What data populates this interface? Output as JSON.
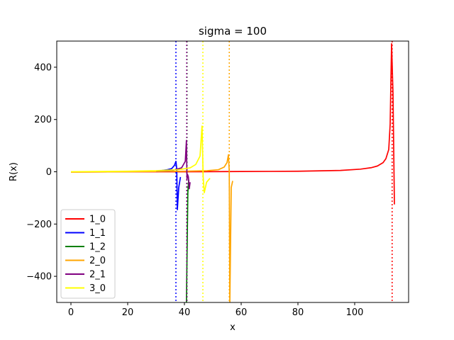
{
  "chart_data": {
    "type": "line",
    "title": "sigma = 100",
    "xlabel": "x",
    "ylabel": "R(x)",
    "xlim": [
      -5,
      119
    ],
    "ylim": [
      -500,
      500
    ],
    "xticks": [
      0,
      20,
      40,
      60,
      80,
      100
    ],
    "xtick_labels": [
      "0",
      "20",
      "40",
      "60",
      "80",
      "100"
    ],
    "yticks": [
      -400,
      -200,
      0,
      200,
      400
    ],
    "ytick_labels": [
      "−400",
      "−200",
      "0",
      "200",
      "400"
    ],
    "grid": false,
    "legend_position": "lower-left",
    "series": [
      {
        "name": "1_0",
        "color": "#ff0000",
        "points": [
          [
            0,
            -1
          ],
          [
            20,
            0
          ],
          [
            40,
            0
          ],
          [
            60,
            1
          ],
          [
            80,
            2
          ],
          [
            95,
            5
          ],
          [
            102,
            10
          ],
          [
            106,
            16
          ],
          [
            108,
            22
          ],
          [
            110,
            35
          ],
          [
            111,
            50
          ],
          [
            112,
            85
          ],
          [
            112.5,
            180
          ],
          [
            113,
            490
          ],
          [
            113.5,
            300
          ],
          [
            114,
            -125
          ]
        ],
        "asymptotes": [
          113.2
        ]
      },
      {
        "name": "1_1",
        "color": "#0000ff",
        "points": [
          [
            32,
            5
          ],
          [
            34,
            8
          ],
          [
            35.5,
            12
          ],
          [
            36.5,
            25
          ],
          [
            37,
            40
          ],
          [
            37.3,
            10
          ],
          [
            37.5,
            -145
          ],
          [
            38,
            -60
          ],
          [
            38.6,
            -20
          ]
        ],
        "asymptotes": [
          37.0
        ]
      },
      {
        "name": "1_2",
        "color": "#008000",
        "points": [
          [
            40.7,
            -500
          ],
          [
            41,
            -250
          ],
          [
            41.2,
            -80
          ],
          [
            41.5,
            -30
          ]
        ],
        "asymptotes": [
          40.9
        ]
      },
      {
        "name": "2_0",
        "color": "#ffa500",
        "points": [
          [
            0,
            -1
          ],
          [
            20,
            0
          ],
          [
            40,
            2
          ],
          [
            48,
            4
          ],
          [
            52,
            8
          ],
          [
            54,
            18
          ],
          [
            55,
            35
          ],
          [
            55.5,
            65
          ],
          [
            55.8,
            0
          ],
          [
            56,
            -500
          ],
          [
            56.5,
            -60
          ],
          [
            57,
            -35
          ]
        ],
        "asymptotes": [
          55.8
        ]
      },
      {
        "name": "2_1",
        "color": "#800080",
        "points": [
          [
            30,
            3
          ],
          [
            36,
            6
          ],
          [
            39,
            15
          ],
          [
            40.3,
            40
          ],
          [
            40.7,
            120
          ],
          [
            40.9,
            -30
          ],
          [
            41.1,
            -10
          ],
          [
            41.4,
            -20
          ],
          [
            41.7,
            -65
          ],
          [
            42,
            -40
          ]
        ],
        "asymptotes": [
          40.8
        ]
      },
      {
        "name": "3_0",
        "color": "#ffff00",
        "points": [
          [
            0,
            0
          ],
          [
            10,
            1
          ],
          [
            20,
            2
          ],
          [
            30,
            4
          ],
          [
            38,
            8
          ],
          [
            42,
            15
          ],
          [
            44,
            28
          ],
          [
            45.5,
            60
          ],
          [
            46.2,
            175
          ],
          [
            46.6,
            -20
          ],
          [
            47,
            -80
          ],
          [
            47.8,
            -40
          ],
          [
            49,
            -25
          ]
        ],
        "asymptotes": [
          46.5
        ]
      }
    ]
  }
}
